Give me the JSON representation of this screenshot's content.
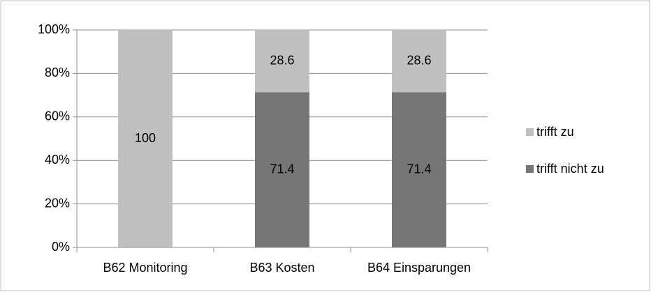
{
  "chart_data": {
    "type": "stacked_bar",
    "categories": [
      "B62 Monitoring",
      "B63 Kosten",
      "B64 Einsparungen"
    ],
    "series": [
      {
        "name": "trifft nicht zu",
        "color": "#767676",
        "values": [
          0,
          71.4,
          71.4
        ]
      },
      {
        "name": "trifft zu",
        "color": "#c0c0c0",
        "values": [
          100,
          28.6,
          28.6
        ]
      }
    ],
    "ylim": [
      0,
      100
    ],
    "yticks": [
      {
        "value": 0,
        "label": "0%"
      },
      {
        "value": 20,
        "label": "20%"
      },
      {
        "value": 40,
        "label": "40%"
      },
      {
        "value": 60,
        "label": "60%"
      },
      {
        "value": 80,
        "label": "80%"
      },
      {
        "value": 100,
        "label": "100%"
      }
    ],
    "grid": true,
    "legend": "right"
  }
}
